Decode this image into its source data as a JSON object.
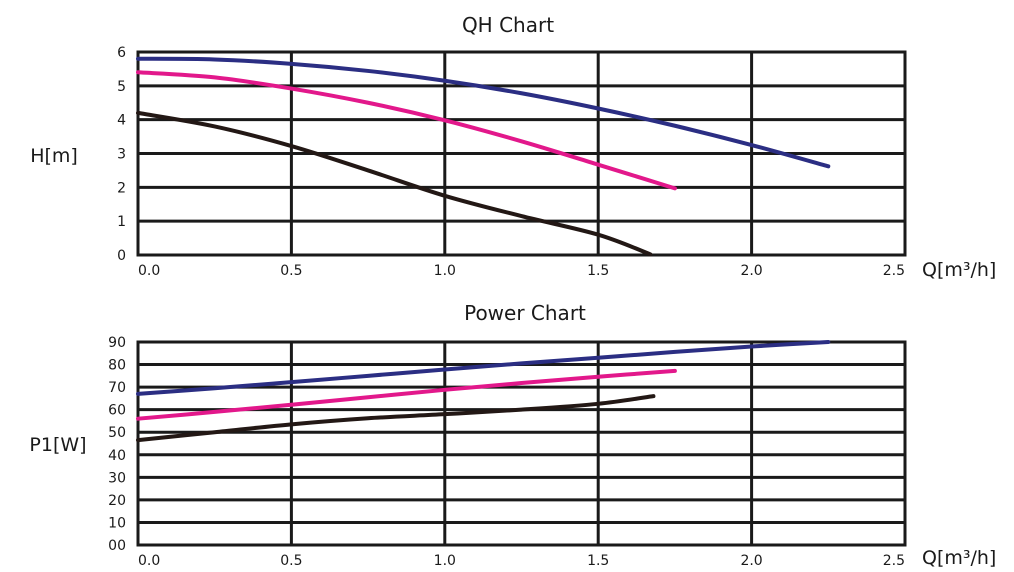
{
  "chart_data": [
    {
      "type": "line",
      "title": "QH Chart",
      "ylabel": "H[m]",
      "xlabel": "Q[m³/h]",
      "xlim": [
        0,
        2.5
      ],
      "ylim": [
        0,
        6
      ],
      "x_ticks": [
        "0.0",
        "0.5",
        "1.0",
        "1.5",
        "2.0",
        "2.5"
      ],
      "y_ticks": [
        "0",
        "1",
        "2",
        "3",
        "4",
        "5",
        "6"
      ],
      "grid": true,
      "series": [
        {
          "color": "#2b2e83",
          "x": [
            0,
            0.25,
            0.5,
            0.75,
            1.0,
            1.25,
            1.5,
            1.75,
            2.0,
            2.25
          ],
          "y": [
            5.8,
            5.78,
            5.65,
            5.44,
            5.15,
            4.78,
            4.33,
            3.82,
            3.25,
            2.62
          ]
        },
        {
          "color": "#e2188b",
          "x": [
            0,
            0.25,
            0.5,
            0.75,
            1.0,
            1.25,
            1.5,
            1.75
          ],
          "y": [
            5.4,
            5.25,
            4.92,
            4.5,
            3.98,
            3.36,
            2.67,
            1.97
          ]
        },
        {
          "color": "#231815",
          "x": [
            0,
            0.25,
            0.5,
            0.75,
            1.0,
            1.25,
            1.5,
            1.67
          ],
          "y": [
            4.2,
            3.8,
            3.22,
            2.5,
            1.75,
            1.15,
            0.6,
            0.02
          ]
        }
      ]
    },
    {
      "type": "line",
      "title": "Power Chart",
      "ylabel": "P1[W]",
      "xlabel": "Q[m³/h]",
      "xlim": [
        0,
        2.5
      ],
      "ylim": [
        0,
        90
      ],
      "x_ticks": [
        "0.0",
        "0.5",
        "1.0",
        "1.5",
        "2.0",
        "2.5"
      ],
      "y_ticks": [
        "00",
        "10",
        "20",
        "30",
        "40",
        "50",
        "60",
        "70",
        "80",
        "90"
      ],
      "grid": true,
      "series": [
        {
          "color": "#2b2e83",
          "x": [
            0,
            0.25,
            0.5,
            0.75,
            1.0,
            1.25,
            1.5,
            1.75,
            2.0,
            2.25
          ],
          "y": [
            67,
            69.5,
            72.2,
            75,
            77.8,
            80.5,
            83,
            85.6,
            88,
            90
          ]
        },
        {
          "color": "#e2188b",
          "x": [
            0,
            0.25,
            0.5,
            0.75,
            1.0,
            1.25,
            1.5,
            1.75
          ],
          "y": [
            56,
            59,
            62.2,
            65.5,
            68.8,
            71.8,
            74.6,
            77.2
          ]
        },
        {
          "color": "#231815",
          "x": [
            0,
            0.25,
            0.5,
            0.75,
            1.0,
            1.25,
            1.5,
            1.68
          ],
          "y": [
            46.5,
            50,
            53.5,
            56.2,
            58,
            60,
            62.6,
            66
          ]
        }
      ]
    }
  ]
}
